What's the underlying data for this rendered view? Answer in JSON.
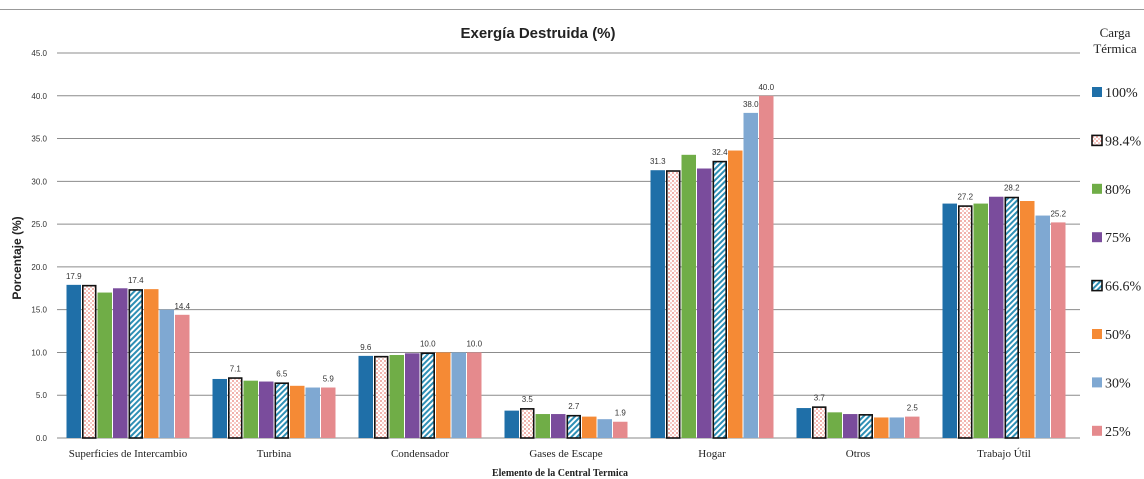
{
  "chart_data": {
    "type": "bar",
    "title": "Exergía Destruida (%)",
    "xlabel": "Elemento de la Central Termica",
    "ylabel": "Porcentaje (%)",
    "ylim": [
      0,
      45
    ],
    "yticks": [
      "0.0",
      "5.0",
      "10.0",
      "15.0",
      "20.0",
      "25.0",
      "30.0",
      "35.0",
      "40.0",
      "45.0"
    ],
    "grid": true,
    "legend_title": "Carga Térmica",
    "legend_position": "right",
    "categories": [
      "Superficies de  Intercambio",
      "Turbina",
      "Condensador",
      "Gases de Escape",
      "Hogar",
      "Otros",
      "Trabajo Útil"
    ],
    "series": [
      {
        "name": "100%",
        "color": "#1f6fa8",
        "pattern": "solid",
        "values": [
          17.9,
          6.9,
          9.6,
          3.2,
          31.3,
          3.5,
          27.4
        ]
      },
      {
        "name": "98.4%",
        "color": "#f2c9c2",
        "pattern": "dots",
        "values": [
          17.9,
          7.1,
          9.6,
          3.5,
          31.3,
          3.7,
          27.2
        ]
      },
      {
        "name": "80%",
        "color": "#70ad47",
        "pattern": "solid",
        "values": [
          17.0,
          6.7,
          9.7,
          2.8,
          33.1,
          3.0,
          27.4
        ]
      },
      {
        "name": "75%",
        "color": "#7a4c9c",
        "pattern": "solid",
        "values": [
          17.5,
          6.6,
          9.9,
          2.8,
          31.5,
          2.8,
          28.2
        ]
      },
      {
        "name": "66.6%",
        "color": "#2e8fb5",
        "pattern": "diagonal",
        "values": [
          17.4,
          6.5,
          10.0,
          2.7,
          32.4,
          2.8,
          28.2
        ]
      },
      {
        "name": "50%",
        "color": "#f58a35",
        "pattern": "solid",
        "values": [
          17.4,
          6.1,
          10.0,
          2.5,
          33.6,
          2.4,
          27.7
        ]
      },
      {
        "name": "30%",
        "color": "#7fa8d2",
        "pattern": "solid",
        "values": [
          15.0,
          5.9,
          10.0,
          2.2,
          38.0,
          2.4,
          26.0
        ]
      },
      {
        "name": "25%",
        "color": "#e58a8d",
        "pattern": "solid",
        "values": [
          14.4,
          5.9,
          10.0,
          1.9,
          40.0,
          2.5,
          25.2
        ]
      }
    ],
    "data_labels": [
      {
        "category": 0,
        "series": 0,
        "text": "17.9"
      },
      {
        "category": 0,
        "series": 4,
        "text": "17.4"
      },
      {
        "category": 0,
        "series": 7,
        "text": "14.4"
      },
      {
        "category": 1,
        "series": 1,
        "text": "7.1"
      },
      {
        "category": 1,
        "series": 4,
        "text": "6.5"
      },
      {
        "category": 1,
        "series": 7,
        "text": "5.9"
      },
      {
        "category": 2,
        "series": 0,
        "text": "9.6"
      },
      {
        "category": 2,
        "series": 4,
        "text": "10.0"
      },
      {
        "category": 2,
        "series": 7,
        "text": "10.0"
      },
      {
        "category": 3,
        "series": 1,
        "text": "3.5"
      },
      {
        "category": 3,
        "series": 4,
        "text": "2.7"
      },
      {
        "category": 3,
        "series": 7,
        "text": "1.9"
      },
      {
        "category": 4,
        "series": 0,
        "text": "31.3"
      },
      {
        "category": 4,
        "series": 4,
        "text": "32.4"
      },
      {
        "category": 4,
        "series": 6,
        "text": "38.0"
      },
      {
        "category": 4,
        "series": 7,
        "text": "40.0"
      },
      {
        "category": 5,
        "series": 1,
        "text": "3.7"
      },
      {
        "category": 5,
        "series": 7,
        "text": "2.5"
      },
      {
        "category": 6,
        "series": 1,
        "text": "27.2"
      },
      {
        "category": 6,
        "series": 4,
        "text": "28.2"
      },
      {
        "category": 6,
        "series": 7,
        "text": "25.2"
      }
    ]
  }
}
